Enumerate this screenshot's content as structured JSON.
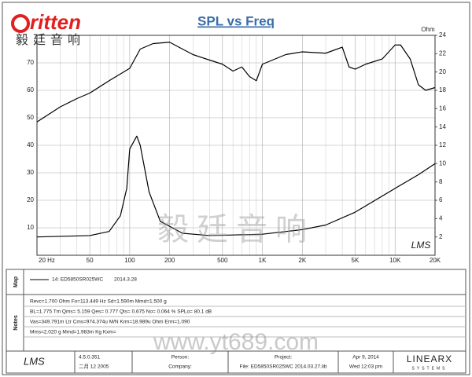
{
  "header": {
    "logo": "ritten",
    "logo_cn": "毅廷音响"
  },
  "chart_data": {
    "type": "line",
    "title": "SPL vs Freq",
    "y2_label": "Ohm",
    "xscale": "log",
    "xlim": [
      20,
      20000
    ],
    "xticks": [
      {
        "value": 20,
        "label": "20 Hz"
      },
      50,
      100,
      200,
      500,
      {
        "value": 1000,
        "label": "1K"
      },
      {
        "value": 2000,
        "label": "2K"
      },
      {
        "value": 5000,
        "label": "5K"
      },
      {
        "value": 10000,
        "label": "10K"
      },
      {
        "value": 20000,
        "label": "20K"
      }
    ],
    "x_minor_ticks": [
      30,
      40,
      60,
      70,
      80,
      90,
      300,
      400,
      600,
      700,
      800,
      900,
      3000,
      4000,
      6000,
      7000,
      8000,
      9000
    ],
    "ylim": [
      0,
      80
    ],
    "yticks": [
      10,
      20,
      30,
      40,
      50,
      60,
      70
    ],
    "y2lim": [
      0,
      24
    ],
    "y2ticks": [
      2,
      4,
      6,
      8,
      10,
      12,
      14,
      16,
      18,
      20,
      22,
      24
    ],
    "grid": true,
    "series": [
      {
        "color": "#000000",
        "x": [
          20,
          30,
          40,
          50,
          70,
          100,
          120,
          150,
          200,
          250,
          300,
          400,
          500,
          600,
          700,
          800,
          900,
          1000,
          1500,
          2000,
          3000,
          4000,
          4500,
          5000,
          6000,
          8000,
          10000,
          11000,
          13000,
          15000,
          17000,
          20000
        ],
        "values": [
          48.5,
          54,
          57,
          59,
          63.5,
          68,
          75,
          77,
          77.5,
          75,
          73,
          71,
          69.5,
          67,
          68.5,
          65,
          63.5,
          69.5,
          73,
          74,
          73.5,
          75.7,
          68.5,
          67.7,
          69.5,
          71.4,
          76.5,
          76.5,
          71.4,
          62,
          60,
          61
        ]
      },
      {
        "color": "#000000",
        "axis": "y2",
        "x": [
          20,
          50,
          70,
          85,
          95,
          100,
          113,
          120,
          140,
          170,
          250,
          400,
          1000,
          2000,
          3000,
          5000,
          10000,
          15000,
          20000
        ],
        "values": [
          2.0,
          2.15,
          2.6,
          4.3,
          7.3,
          11.6,
          13.0,
          12,
          6.9,
          3.7,
          2.4,
          2.15,
          2.3,
          2.8,
          3.3,
          4.7,
          7.3,
          8.8,
          10
        ]
      }
    ],
    "plot_logo": "LMS",
    "watermark": [
      "毅廷音响",
      "www.yt689.com"
    ]
  },
  "panel": {
    "map_label": "Map",
    "notes_label": "Notes",
    "legend": {
      "name": "14: ED5850SR025WC",
      "date": "2014.3.28"
    },
    "notes": [
      "Revc=1.700 Ohm  Fo=113.449 Hz  Sd=1.590m Mmd=1.500 g",
      "BL=1.775 Tm  Qms= 5.159  Qes= 0.777  Qts= 0.675  No= 0.064 %  SPLo= 80.1 dB",
      "Vas=349.791m Ltr  Cms=974.374u M/N  Krm=18.989u Ohm  Erm=1.090",
      "Mms=2.020 g  Mmd=1.983m Kg  Kxm="
    ],
    "footer": {
      "app": "LMS",
      "version": "4.5.0.351",
      "build": "二月 12 2005",
      "person": "Person:",
      "company": "Company:",
      "project": "Project:",
      "file": "File: ED5850SR025WC  2014.03.27.lib",
      "date": "Apr  9, 2014",
      "time": "Wed 12:03 pm",
      "brand": "LINEARX",
      "brand_sub": "SYSTEMS"
    }
  }
}
